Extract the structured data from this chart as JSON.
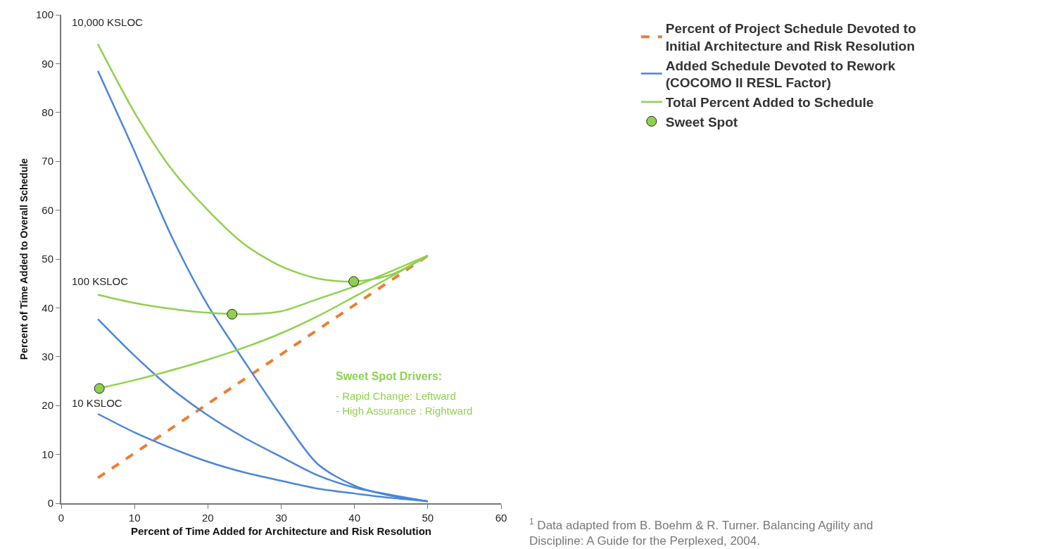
{
  "chart_data": {
    "type": "line",
    "xlabel": "Percent of Time Added for Architecture and Risk Resolution",
    "ylabel": "Percent of Time Added to Overall Schedule",
    "xlim": [
      0,
      60
    ],
    "xticks": [
      0,
      10,
      20,
      30,
      40,
      50,
      60
    ],
    "ylim": [
      0,
      100
    ],
    "yticks": [
      0,
      10,
      20,
      30,
      40,
      50,
      60,
      70,
      80,
      90,
      100
    ],
    "legend": "top right",
    "series": [
      {
        "name": "Percent of Project Schedule Devoted to\nInitial Architecture and Risk Resolution",
        "color": "#ed7d31",
        "line_style": "dashed",
        "marker": "none",
        "x": [
          5,
          50
        ],
        "values": [
          5.2,
          50.7
        ]
      },
      {
        "name": "Added Schedule Devoted to Rework\n(COCOMO II RESL Factor)",
        "color": "#4a86d8",
        "line_style": "solid",
        "marker": "none",
        "x": [
          5,
          10,
          15,
          20,
          25,
          30,
          35,
          40,
          45,
          50
        ],
        "values": [
          88.5,
          72,
          54.8,
          40.5,
          29,
          17.9,
          8,
          3.6,
          1.5,
          0.4
        ]
      },
      {
        "color": "#4a86d8",
        "line_style": "solid",
        "marker": "none",
        "x": [
          5,
          10,
          15,
          20,
          25,
          30,
          35,
          40,
          45,
          50
        ],
        "values": [
          37.7,
          30.2,
          23.5,
          18,
          13.4,
          9.5,
          5.7,
          3.2,
          1.7,
          0.4
        ]
      },
      {
        "color": "#4a86d8",
        "line_style": "solid",
        "marker": "none",
        "x": [
          5,
          10,
          15,
          20,
          25,
          30,
          35,
          40,
          45,
          50
        ],
        "values": [
          18.3,
          14.5,
          11.3,
          8.5,
          6.3,
          4.6,
          3,
          2,
          1.1,
          0.4
        ]
      },
      {
        "name": "Total Percent Added to Schedule",
        "color": "#8fd14f",
        "line_style": "solid",
        "marker": "none",
        "x": [
          5,
          10,
          15,
          20,
          25,
          30,
          35,
          40,
          45,
          50
        ],
        "values": [
          94,
          80,
          68.5,
          60,
          53,
          48.5,
          46,
          45.4,
          46.8,
          50.7
        ]
      },
      {
        "color": "#8fd14f",
        "line_style": "solid",
        "marker": "none",
        "x": [
          5,
          10,
          15,
          20,
          25,
          30,
          35,
          40,
          45,
          50
        ],
        "values": [
          42.7,
          41,
          39.8,
          39,
          38.7,
          39.3,
          41.8,
          44.4,
          47.5,
          50.7
        ]
      },
      {
        "color": "#8fd14f",
        "line_style": "solid",
        "marker": "none",
        "x": [
          5,
          10,
          15,
          20,
          25,
          30,
          35,
          40,
          45,
          50
        ],
        "values": [
          23.5,
          25.2,
          27.2,
          29.4,
          31.9,
          34.8,
          38.3,
          42.3,
          46.4,
          50.7
        ]
      },
      {
        "name": "Sweet Spot",
        "type": "scatter",
        "color": "#8fd14f",
        "marker": "circle",
        "x": [
          5.2,
          23.3,
          39.9
        ],
        "values": [
          23.5,
          38.7,
          45.4
        ]
      }
    ],
    "annotations": [
      "10,000 KSLOC",
      "100 KSLOC",
      "10 KSLOC",
      "Sweet Spot Drivers:",
      "- Rapid Change: Leftward",
      "- High Assurance : Rightward",
      "$^{1}$ Data adapted from B. Boehm & R. Turner. Balancing Agility and\nDiscipline: A Guide for the Perplexed, 2004."
    ]
  }
}
